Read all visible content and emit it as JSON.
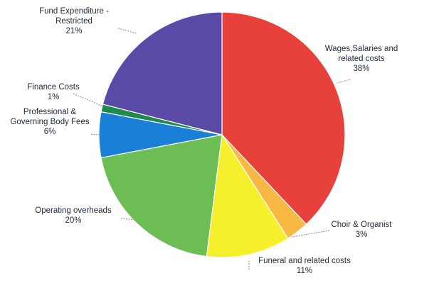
{
  "chart_data": {
    "type": "pie",
    "slices": [
      {
        "name": "Wages,Salaries and related costs",
        "value": 38,
        "pct_label": "38%",
        "color": "#e8403a"
      },
      {
        "name": "Choir & Organist",
        "value": 3,
        "pct_label": "3%",
        "color": "#f7b844"
      },
      {
        "name": "Funeral and related costs",
        "value": 11,
        "pct_label": "11%",
        "color": "#f6ef2c"
      },
      {
        "name": "Operating overheads",
        "value": 20,
        "pct_label": "20%",
        "color": "#6cbd53"
      },
      {
        "name": "Professional & Governing Body Fees",
        "value": 6,
        "pct_label": "6%",
        "color": "#1a7fd6"
      },
      {
        "name": "Finance Costs",
        "value": 1,
        "pct_label": "1%",
        "color": "#1f8a4c"
      },
      {
        "name": "Fund Expenditure - Restricted",
        "value": 21,
        "pct_label": "21%",
        "color": "#5a4aa5"
      }
    ],
    "labels": [
      {
        "lines": [
          "Wages,Salaries and",
          "related costs",
          "38%"
        ]
      },
      {
        "lines": [
          "Choir & Organist",
          "3%"
        ]
      },
      {
        "lines": [
          "Funeral and related costs",
          "11%"
        ]
      },
      {
        "lines": [
          "Operating overheads",
          "20%"
        ]
      },
      {
        "lines": [
          "Professional &",
          "Governing Body Fees",
          "6%"
        ]
      },
      {
        "lines": [
          "Finance Costs",
          "1%"
        ]
      },
      {
        "lines": [
          "Fund Expenditure -",
          "Restricted",
          "21%"
        ]
      }
    ],
    "title": "",
    "legend": "none"
  }
}
